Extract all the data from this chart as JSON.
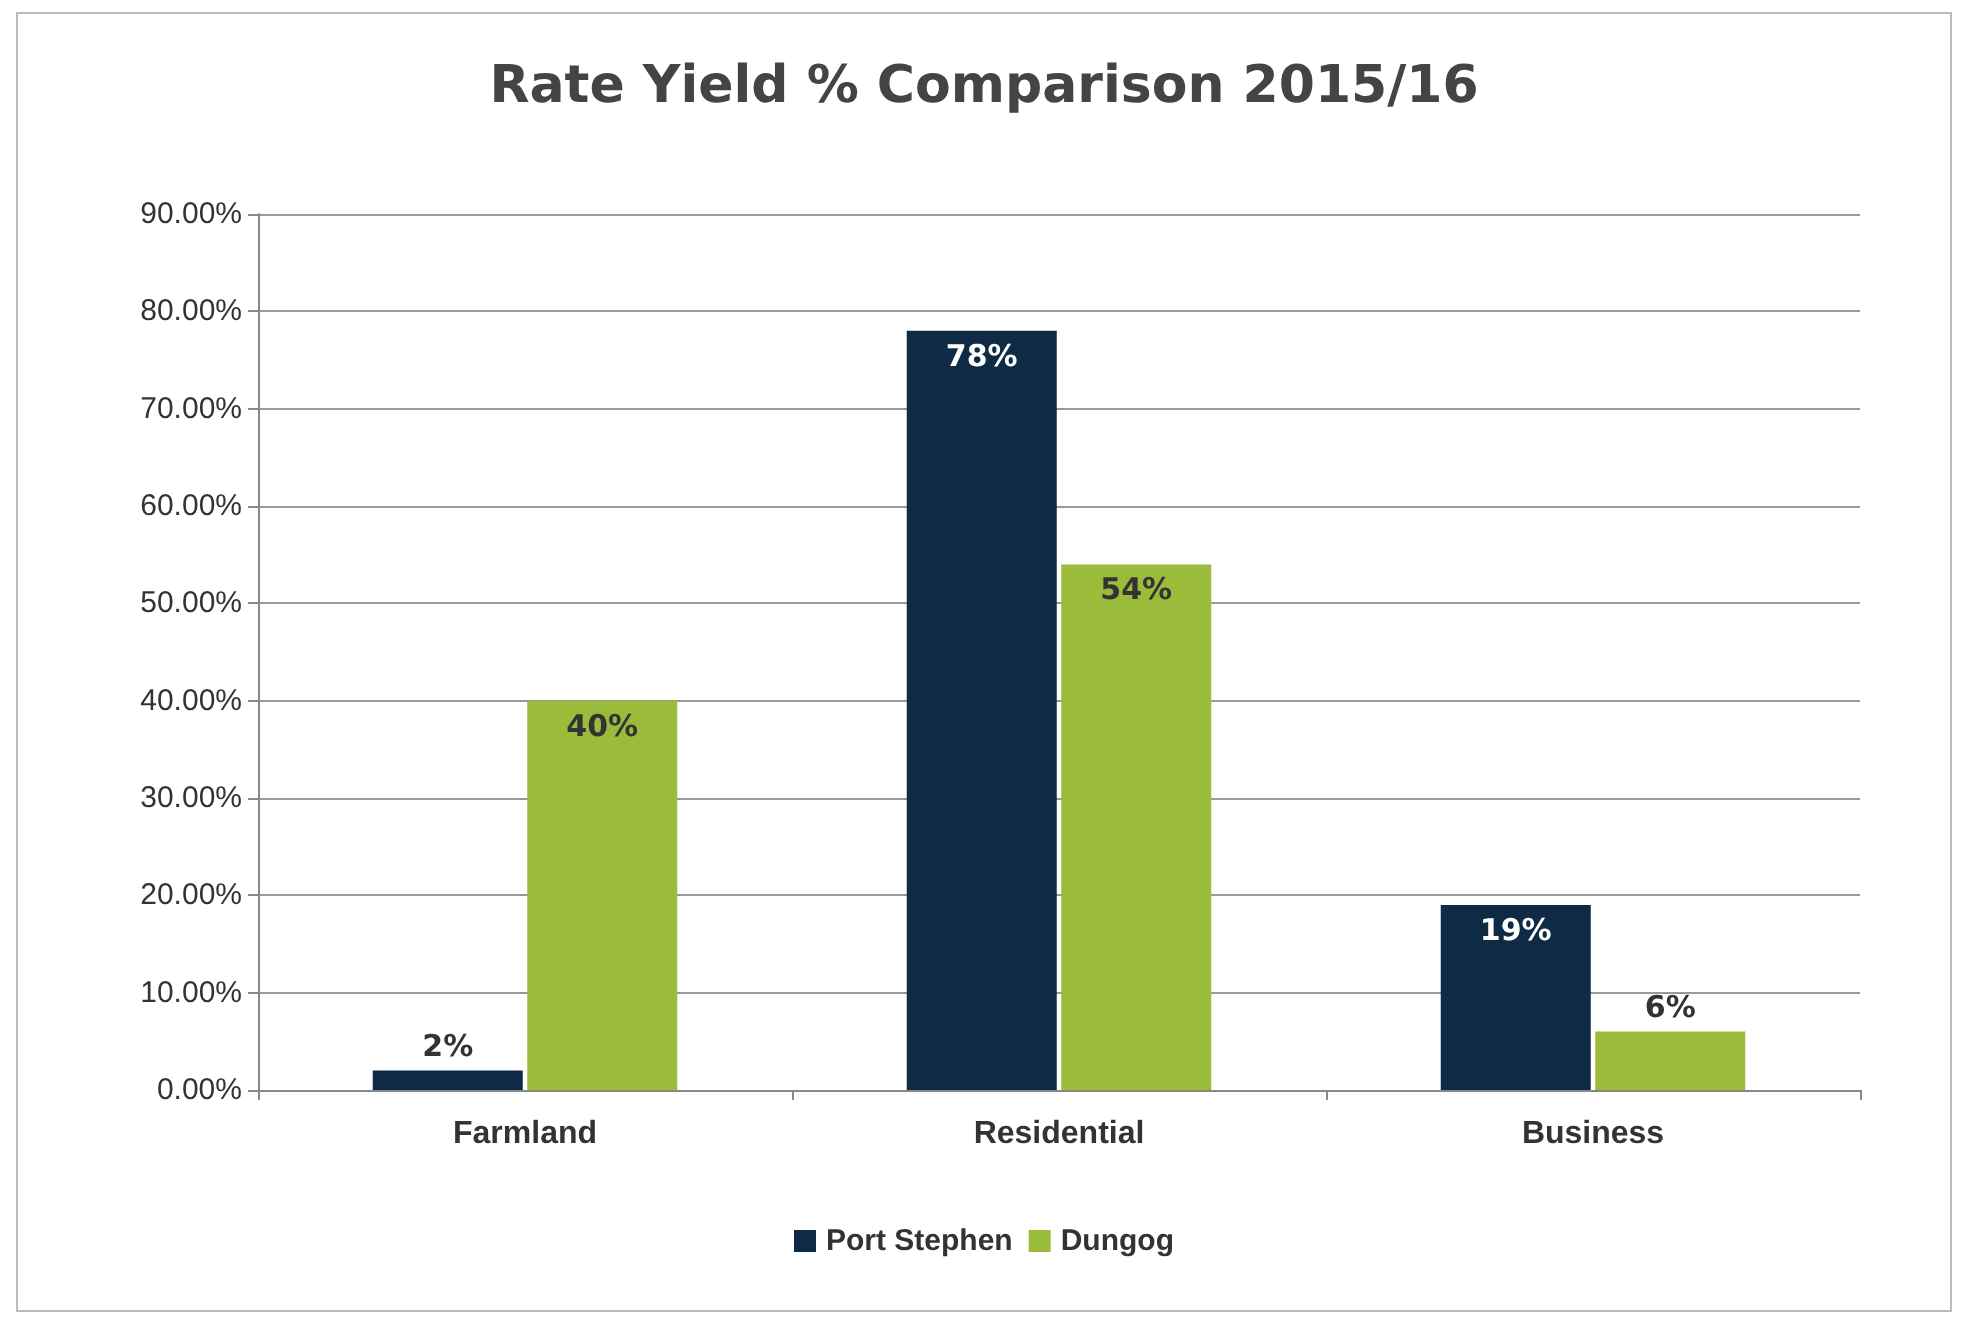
{
  "chart_data": {
    "type": "bar",
    "title": "Rate Yield % Comparison 2015/16",
    "categories": [
      "Farmland",
      "Residential",
      "Business"
    ],
    "series": [
      {
        "name": "Port Stephen",
        "color": "#0f2a44",
        "values": [
          2,
          78,
          19
        ],
        "value_labels": [
          "2%",
          "78%",
          "19%"
        ]
      },
      {
        "name": "Dungog",
        "color": "#9bbb3a",
        "values": [
          40,
          54,
          6
        ],
        "value_labels": [
          "40%",
          "54%",
          "6%"
        ]
      }
    ],
    "ylim": [
      0,
      90
    ],
    "yticks": [
      {
        "value": 0,
        "label": "0.00%"
      },
      {
        "value": 10,
        "label": "10.00%"
      },
      {
        "value": 20,
        "label": "20.00%"
      },
      {
        "value": 30,
        "label": "30.00%"
      },
      {
        "value": 40,
        "label": "40.00%"
      },
      {
        "value": 50,
        "label": "50.00%"
      },
      {
        "value": 60,
        "label": "60.00%"
      },
      {
        "value": 70,
        "label": "70.00%"
      },
      {
        "value": 80,
        "label": "80.00%"
      },
      {
        "value": 90,
        "label": "90.00%"
      }
    ],
    "grid": "y",
    "legend": "bottom"
  }
}
